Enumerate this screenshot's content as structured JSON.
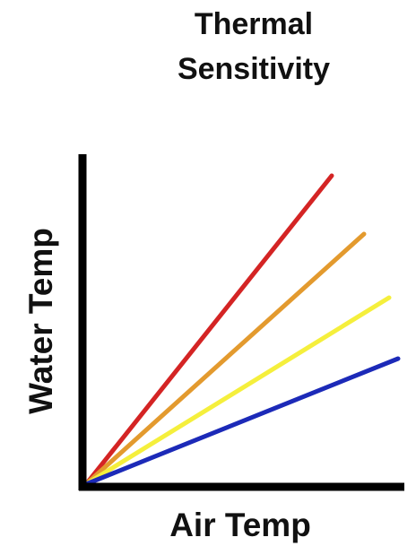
{
  "title_lines": [
    "Thermal",
    "Sensitivity"
  ],
  "y_axis_label": "Water Temp",
  "x_axis_label": "Air Temp"
}
